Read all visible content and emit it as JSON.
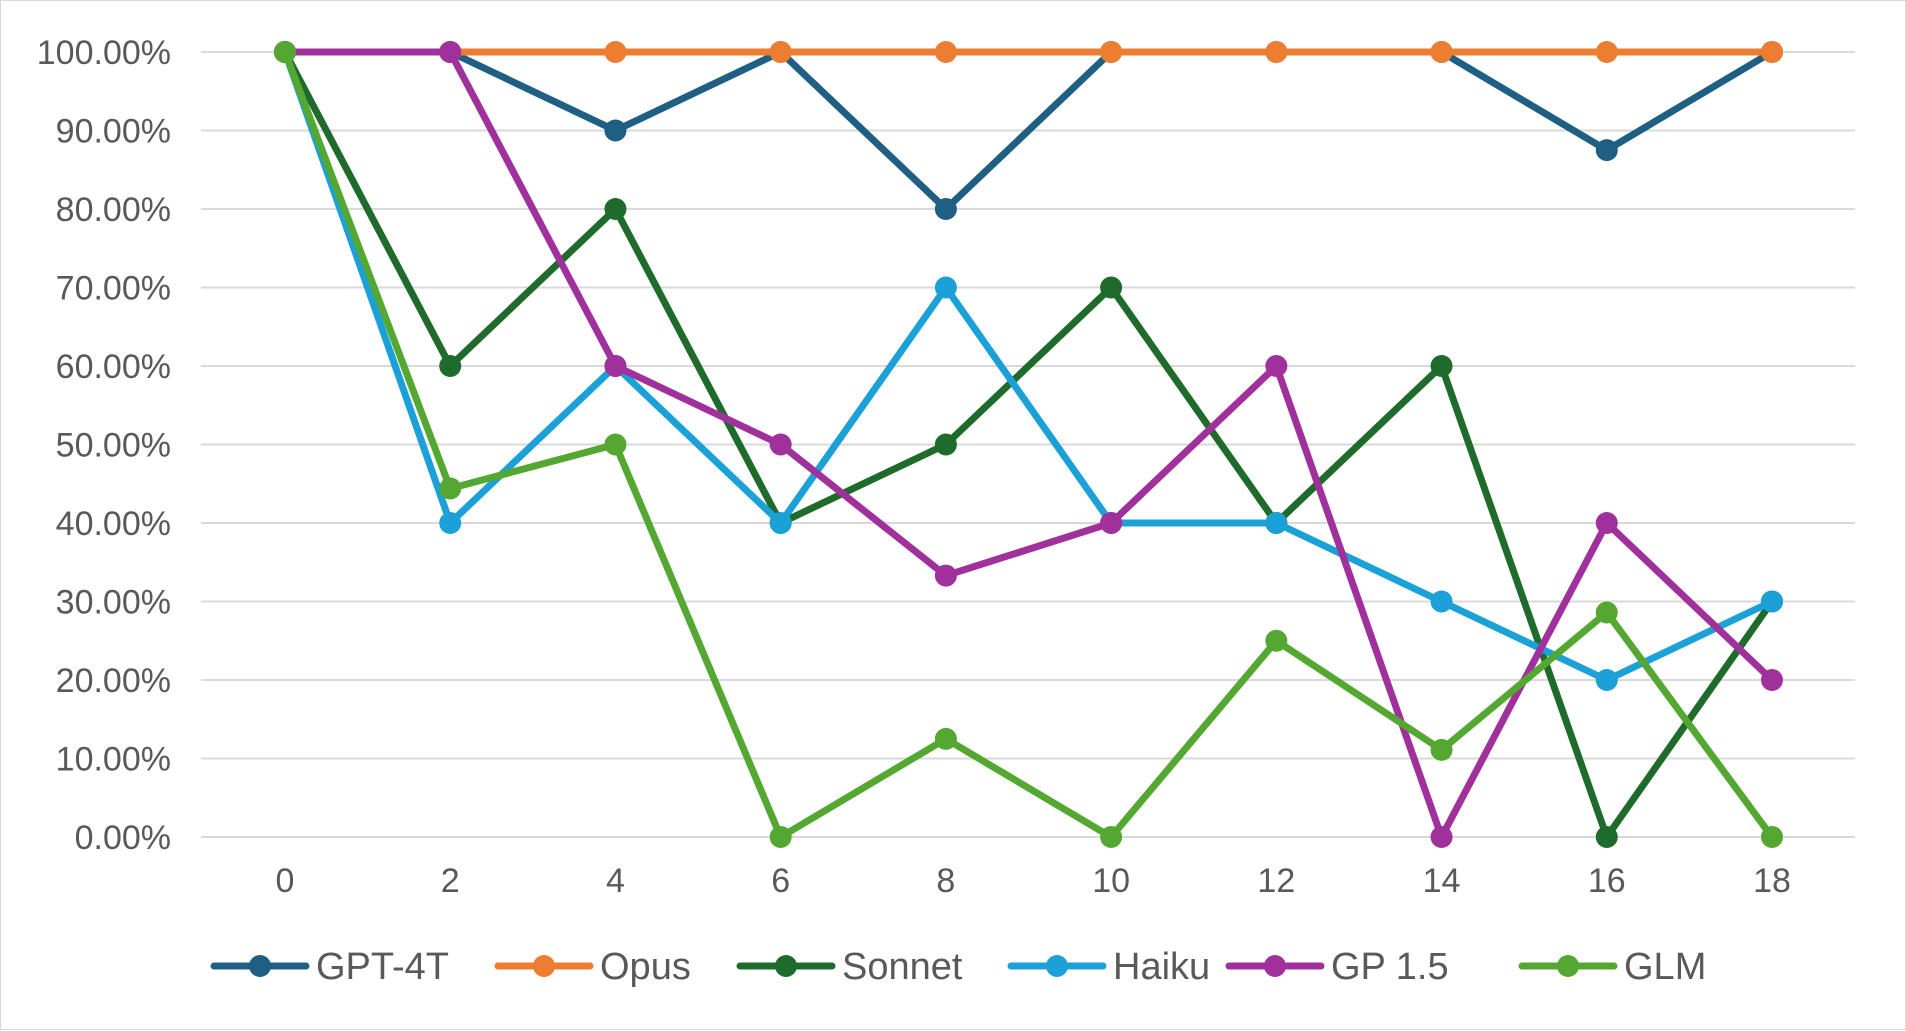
{
  "chart_data": {
    "type": "line",
    "title": "",
    "xlabel": "",
    "ylabel": "",
    "x": [
      0,
      2,
      4,
      6,
      8,
      10,
      12,
      14,
      16,
      18
    ],
    "x_tick_labels": [
      "0",
      "2",
      "4",
      "6",
      "8",
      "10",
      "12",
      "14",
      "16",
      "18"
    ],
    "ylim": [
      0,
      100
    ],
    "y_ticks": [
      0,
      10,
      20,
      30,
      40,
      50,
      60,
      70,
      80,
      90,
      100
    ],
    "y_tick_labels": [
      "0.00%",
      "10.00%",
      "20.00%",
      "30.00%",
      "40.00%",
      "50.00%",
      "60.00%",
      "70.00%",
      "80.00%",
      "90.00%",
      "100.00%"
    ],
    "grid": true,
    "legend_position": "bottom",
    "series": [
      {
        "name": "GPT-4T",
        "color": "#1f5f84",
        "values": [
          100,
          100,
          90,
          100,
          80,
          100,
          100,
          100,
          87.5,
          100
        ]
      },
      {
        "name": "Opus",
        "color": "#ed7d31",
        "values": [
          100,
          100,
          100,
          100,
          100,
          100,
          100,
          100,
          100,
          100
        ]
      },
      {
        "name": "Sonnet",
        "color": "#1e6b2b",
        "values": [
          100,
          60,
          80,
          40,
          50,
          70,
          40,
          60,
          0,
          30
        ]
      },
      {
        "name": "Haiku",
        "color": "#1ba1d8",
        "values": [
          100,
          40,
          60,
          40,
          70,
          40,
          40,
          30,
          20,
          30
        ]
      },
      {
        "name": "GP 1.5",
        "color": "#a0309c",
        "values": [
          100,
          100,
          60,
          50,
          33.3,
          40,
          60,
          0,
          40,
          20
        ]
      },
      {
        "name": "GLM",
        "color": "#54a832",
        "values": [
          100,
          44.4,
          50,
          0,
          12.5,
          0,
          25,
          11.1,
          28.6,
          0
        ]
      }
    ]
  }
}
